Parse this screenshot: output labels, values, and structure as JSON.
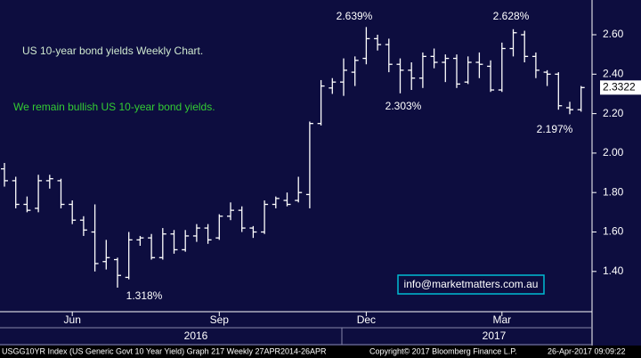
{
  "chart_data": {
    "type": "ohlc",
    "title": "US 10-year bond yields Weekly Chart.",
    "subtitle": "We remain bullish US 10-year bond yields.",
    "annotations": [
      "2.639%",
      "2.628%",
      "2.303%",
      "2.197%",
      "1.318%"
    ],
    "contact": "info@marketmatters.com.au",
    "years": [
      "2016",
      "2017"
    ],
    "footer": [
      "USGG10YR Index (US Generic Govt 10 Year Yield) Graph 217 Weekly 27APR2014-26APR",
      "Copyright© 2017 Bloomberg Finance L.P.",
      "26-Apr-2017 09:09:22"
    ],
    "categories": [
      null,
      null,
      null,
      null,
      null,
      null,
      "Jun",
      null,
      null,
      null,
      null,
      null,
      null,
      null,
      null,
      null,
      null,
      null,
      null,
      "Sep",
      null,
      null,
      null,
      null,
      null,
      null,
      null,
      null,
      null,
      null,
      null,
      null,
      "Dec",
      null,
      null,
      null,
      null,
      null,
      null,
      null,
      null,
      null,
      null,
      null,
      "Mar",
      null,
      null,
      null,
      null,
      null,
      null,
      null
    ],
    "open": [
      1.92,
      1.86,
      1.74,
      1.72,
      1.86,
      1.86,
      1.74,
      1.66,
      1.6,
      1.45,
      1.46,
      1.37,
      1.56,
      1.57,
      1.47,
      1.59,
      1.51,
      1.58,
      1.62,
      1.57,
      1.68,
      1.71,
      1.62,
      1.6,
      1.74,
      1.76,
      1.76,
      1.79,
      2.15,
      2.33,
      2.36,
      2.41,
      2.48,
      2.58,
      2.55,
      2.45,
      2.42,
      2.38,
      2.49,
      2.46,
      2.48,
      2.36,
      2.46,
      2.44,
      2.32,
      2.53,
      2.6,
      2.49,
      2.41,
      2.4,
      2.23,
      2.22
    ],
    "high": [
      1.95,
      1.88,
      1.78,
      1.89,
      1.89,
      1.87,
      1.76,
      1.68,
      1.74,
      1.56,
      1.47,
      1.6,
      1.58,
      1.59,
      1.62,
      1.61,
      1.61,
      1.64,
      1.64,
      1.69,
      1.75,
      1.73,
      1.63,
      1.76,
      1.78,
      1.8,
      1.88,
      2.16,
      2.37,
      2.38,
      2.48,
      2.49,
      2.639,
      2.6,
      2.58,
      2.48,
      2.46,
      2.51,
      2.53,
      2.5,
      2.5,
      2.49,
      2.51,
      2.47,
      2.56,
      2.628,
      2.62,
      2.51,
      2.42,
      2.41,
      2.26,
      2.34
    ],
    "low": [
      1.83,
      1.72,
      1.7,
      1.7,
      1.82,
      1.72,
      1.64,
      1.58,
      1.4,
      1.41,
      1.318,
      1.36,
      1.53,
      1.46,
      1.46,
      1.49,
      1.5,
      1.55,
      1.54,
      1.56,
      1.66,
      1.6,
      1.57,
      1.59,
      1.72,
      1.73,
      1.75,
      1.72,
      2.14,
      2.3,
      2.29,
      2.34,
      2.45,
      2.52,
      2.41,
      2.303,
      2.32,
      2.33,
      2.43,
      2.36,
      2.33,
      2.35,
      2.38,
      2.31,
      2.31,
      2.49,
      2.46,
      2.38,
      2.34,
      2.22,
      2.197,
      2.21
    ],
    "close": [
      1.86,
      1.74,
      1.71,
      1.86,
      1.87,
      1.74,
      1.66,
      1.61,
      1.44,
      1.47,
      1.38,
      1.56,
      1.57,
      1.47,
      1.59,
      1.51,
      1.58,
      1.62,
      1.56,
      1.68,
      1.71,
      1.62,
      1.6,
      1.74,
      1.77,
      1.74,
      1.8,
      2.15,
      2.34,
      2.36,
      2.42,
      2.47,
      2.58,
      2.55,
      2.45,
      2.42,
      2.38,
      2.49,
      2.46,
      2.48,
      2.35,
      2.46,
      2.45,
      2.32,
      2.53,
      2.61,
      2.49,
      2.42,
      2.4,
      2.24,
      2.22,
      2.3322
    ],
    "color": "#ffffff",
    "ylim": [
      1.196,
      2.776
    ],
    "yticks": [
      {
        "value": 1.4,
        "label": "1.40"
      },
      {
        "value": 1.6,
        "label": "1.60"
      },
      {
        "value": 1.8,
        "label": "1.80"
      },
      {
        "value": 2.0,
        "label": "2.00"
      },
      {
        "value": 2.2,
        "label": "2.20"
      },
      {
        "value": 2.4,
        "label": "2.40"
      },
      {
        "value": 2.6,
        "label": "2.60"
      }
    ]
  }
}
